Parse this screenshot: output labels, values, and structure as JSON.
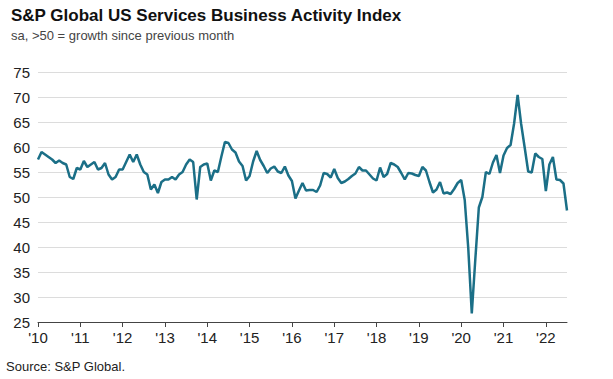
{
  "chart_data": {
    "type": "line",
    "title": "S&P Global US Services Business Activity Index",
    "subtitle": "sa, >50 = growth since previous month",
    "source": "Source: S&P Global.",
    "categories": [
      "'10",
      null,
      null,
      null,
      null,
      null,
      null,
      null,
      null,
      null,
      null,
      null,
      "'11",
      null,
      null,
      null,
      null,
      null,
      null,
      null,
      null,
      null,
      null,
      null,
      "'12",
      null,
      null,
      null,
      null,
      null,
      null,
      null,
      null,
      null,
      null,
      null,
      "'13",
      null,
      null,
      null,
      null,
      null,
      null,
      null,
      null,
      null,
      null,
      null,
      "'14",
      null,
      null,
      null,
      null,
      null,
      null,
      null,
      null,
      null,
      null,
      null,
      "'15",
      null,
      null,
      null,
      null,
      null,
      null,
      null,
      null,
      null,
      null,
      null,
      "'16",
      null,
      null,
      null,
      null,
      null,
      null,
      null,
      null,
      null,
      null,
      null,
      "'17",
      null,
      null,
      null,
      null,
      null,
      null,
      null,
      null,
      null,
      null,
      null,
      "'18",
      null,
      null,
      null,
      null,
      null,
      null,
      null,
      null,
      null,
      null,
      null,
      "'19",
      null,
      null,
      null,
      null,
      null,
      null,
      null,
      null,
      null,
      null,
      null,
      "'20",
      null,
      null,
      null,
      null,
      null,
      null,
      null,
      null,
      null,
      null,
      null,
      "'21",
      null,
      null,
      null,
      null,
      null,
      null,
      null,
      null,
      null,
      null,
      null,
      "'22",
      null,
      null,
      null,
      null,
      null,
      null
    ],
    "values": [
      57.5,
      59.0,
      58.5,
      58.0,
      57.5,
      56.8,
      57.3,
      56.8,
      56.5,
      54.0,
      53.6,
      55.8,
      55.5,
      57.2,
      56.0,
      56.5,
      57.0,
      55.5,
      55.8,
      56.8,
      54.5,
      53.5,
      54.0,
      55.5,
      55.5,
      57.0,
      58.5,
      57.0,
      58.5,
      56.5,
      55.0,
      54.5,
      51.5,
      52.5,
      50.8,
      53.0,
      53.5,
      53.5,
      54.0,
      53.5,
      54.5,
      55.0,
      56.5,
      57.5,
      57.0,
      49.5,
      56.0,
      56.5,
      56.7,
      53.3,
      55.3,
      55.0,
      58.1,
      61.0,
      60.8,
      59.5,
      58.9,
      57.1,
      56.2,
      53.3,
      54.2,
      57.1,
      59.2,
      57.4,
      56.2,
      54.8,
      55.7,
      56.1,
      55.1,
      54.8,
      56.1,
      54.3,
      53.2,
      49.7,
      51.3,
      52.8,
      51.3,
      51.4,
      51.4,
      51.0,
      52.3,
      54.8,
      54.6,
      53.9,
      55.6,
      53.8,
      52.8,
      53.1,
      53.6,
      54.2,
      54.7,
      56.0,
      55.3,
      55.3,
      54.5,
      53.7,
      53.3,
      55.9,
      54.0,
      54.6,
      56.8,
      56.5,
      56.0,
      54.8,
      53.5,
      54.8,
      54.7,
      54.4,
      54.2,
      56.0,
      55.3,
      53.0,
      50.9,
      51.5,
      53.0,
      50.7,
      50.9,
      50.6,
      51.6,
      52.8,
      53.4,
      49.4,
      39.8,
      26.7,
      37.5,
      47.9,
      50.0,
      55.0,
      54.6,
      56.9,
      58.4,
      54.8,
      58.3,
      59.8,
      60.4,
      64.7,
      70.4,
      64.6,
      59.9,
      55.1,
      54.9,
      58.7,
      58.0,
      57.6,
      51.2,
      56.5,
      58.0,
      53.5,
      53.4,
      52.7,
      47.3
    ],
    "color": "#1b6f87",
    "ylim": [
      25,
      75
    ],
    "yticks": [
      25,
      30,
      35,
      40,
      45,
      50,
      55,
      60,
      65,
      70,
      75
    ],
    "grid": true
  }
}
